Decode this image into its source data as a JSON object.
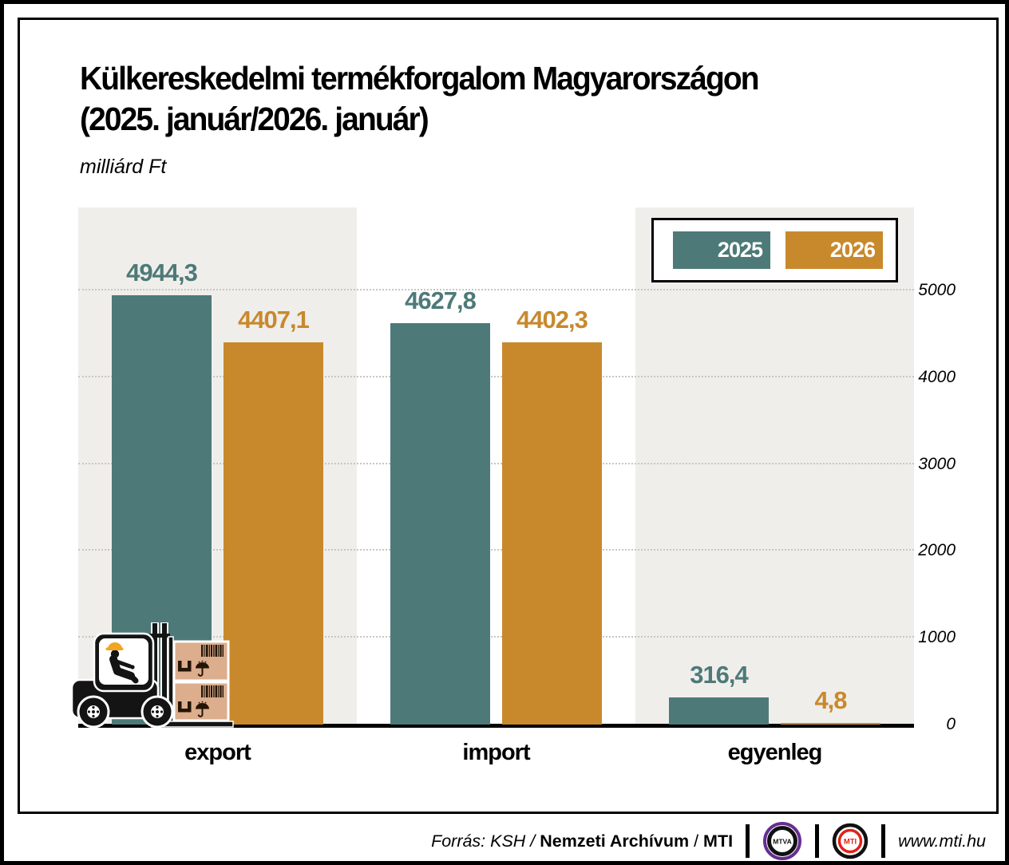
{
  "header": {
    "title_line1": "Külkereskedelmi termékforgalom Magyarországon",
    "title_line2": "(2025. január/2026. január)",
    "unit": "milliárd Ft"
  },
  "chart_data": {
    "type": "bar",
    "title": "Külkereskedelmi termékforgalom Magyarországon (2025. január/2026. január)",
    "unit": "milliárd Ft",
    "categories": [
      "export",
      "import",
      "egyenleg"
    ],
    "series": [
      {
        "name": "2025",
        "color": "#4d7a78",
        "values": [
          4944.3,
          4627.8,
          316.4
        ],
        "labels": [
          "4944,3",
          "4627,8",
          "316,4"
        ]
      },
      {
        "name": "2026",
        "color": "#c8892d",
        "values": [
          4407.1,
          4402.3,
          4.8
        ],
        "labels": [
          "4407,1",
          "4402,3",
          "4,8"
        ]
      }
    ],
    "yticks": [
      5000,
      4000,
      3000,
      2000,
      1000,
      0
    ],
    "ylim": [
      0,
      5500
    ],
    "grid": "dotted-horizontal",
    "legend_position": "top-right",
    "band_colors": [
      "#f0eeeb",
      "#ffffff",
      "#f0eeeb"
    ]
  },
  "legend": {
    "items": [
      {
        "label": "2025",
        "color": "#4d7a78"
      },
      {
        "label": "2026",
        "color": "#c8892d"
      }
    ]
  },
  "footer": {
    "source_italic": "Forrás: KSH /",
    "source_bold": "Nemzeti Archívum",
    "source_sep": "/",
    "source_bold2": "MTI",
    "mtva_label": "MTVA",
    "mti_label": "MTI",
    "website": "www.mti.hu"
  },
  "icons": {
    "forklift": "forklift-with-pallet-boxes-illustration"
  }
}
